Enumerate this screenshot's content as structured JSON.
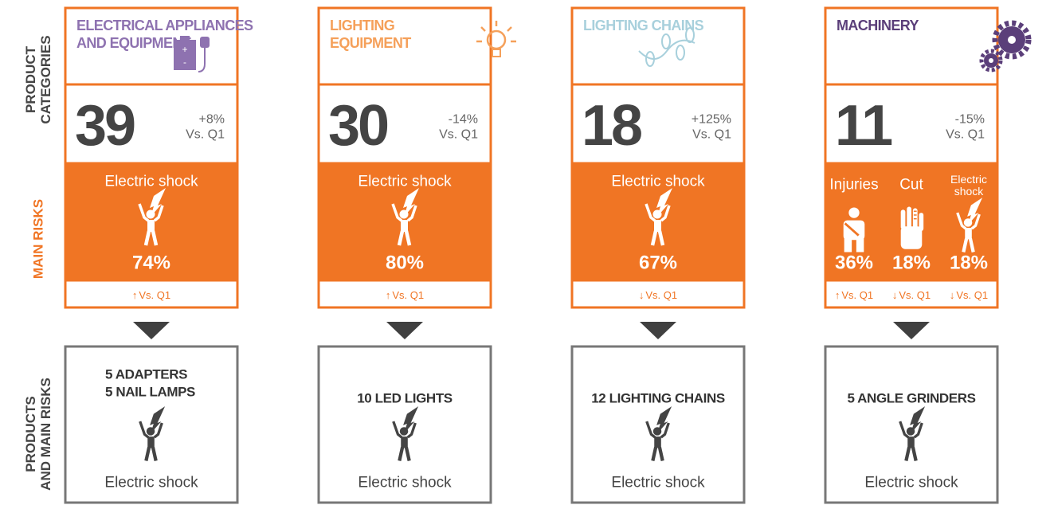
{
  "side_labels": [
    {
      "lines": [
        "PRODUCT",
        "CATEGORIES"
      ],
      "color": "#444444"
    },
    {
      "lines": [
        "MAIN RISKS"
      ],
      "color": "#f07524"
    },
    {
      "lines": [
        "PRODUCTS",
        "AND MAIN RISKS"
      ],
      "color": "#444444"
    }
  ],
  "columns": [
    {
      "title": [
        "ELECTRICAL APPLIANCES",
        "AND EQUIPMENT"
      ],
      "color": "#8e72b0",
      "count": "39",
      "change": "+8%",
      "vs": "Vs. Q1",
      "risks": [
        {
          "name": "Electric shock",
          "pct": "74%",
          "trend": "↑",
          "vs": "Vs. Q1"
        }
      ],
      "products": [
        "5 ADAPTERS",
        "5 NAIL LAMPS"
      ],
      "product_risk": "Electric shock"
    },
    {
      "title": [
        "LIGHTING",
        "EQUIPMENT"
      ],
      "color": "#f5a05a",
      "count": "30",
      "change": "-14%",
      "vs": "Vs. Q1",
      "risks": [
        {
          "name": "Electric shock",
          "pct": "80%",
          "trend": "↑",
          "vs": "Vs. Q1"
        }
      ],
      "products": [
        "10 LED LIGHTS"
      ],
      "product_risk": "Electric shock"
    },
    {
      "title": [
        "LIGHTING CHAINS"
      ],
      "color": "#a8d0dc",
      "count": "18",
      "change": "+125%",
      "vs": "Vs. Q1",
      "risks": [
        {
          "name": "Electric shock",
          "pct": "67%",
          "trend": "↓",
          "vs": "Vs. Q1"
        }
      ],
      "products": [
        "12 LIGHTING CHAINS"
      ],
      "product_risk": "Electric shock"
    },
    {
      "title": [
        "MACHINERY"
      ],
      "color": "#5b3f7a",
      "count": "11",
      "change": "-15%",
      "vs": "Vs. Q1",
      "risks": [
        {
          "name": "Injuries",
          "pct": "36%",
          "trend": "↑",
          "vs": "Vs. Q1"
        },
        {
          "name": "Cut",
          "pct": "18%",
          "trend": "↓",
          "vs": "Vs. Q1"
        },
        {
          "name": "Electric shock",
          "pct": "18%",
          "trend": "↓",
          "vs": "Vs. Q1"
        }
      ],
      "products": [
        "5 ANGLE GRINDERS"
      ],
      "product_risk": "Electric shock"
    }
  ]
}
